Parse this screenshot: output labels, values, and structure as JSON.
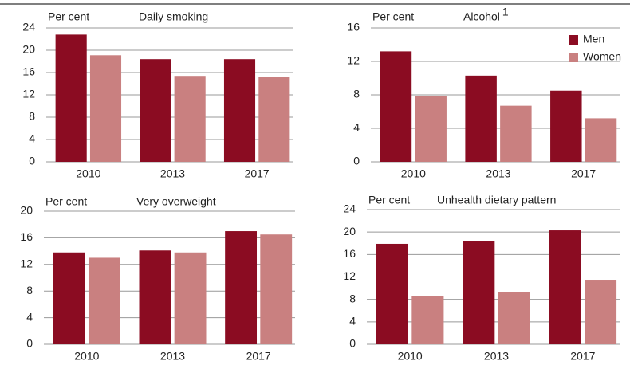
{
  "chart_data": [
    {
      "type": "bar",
      "title": "Daily smoking",
      "y_label": "Per cent",
      "categories": [
        "2010",
        "2013",
        "2017"
      ],
      "series": [
        {
          "name": "Men",
          "color": "#8b0c22",
          "values": [
            22.8,
            18.4,
            18.4
          ]
        },
        {
          "name": "Women",
          "color": "#c98080",
          "values": [
            19.1,
            15.4,
            15.2
          ]
        }
      ],
      "ylim": [
        0,
        24
      ],
      "yticks": [
        0,
        4,
        8,
        12,
        16,
        20,
        24
      ],
      "grid": true
    },
    {
      "type": "bar",
      "title": "Alcohol",
      "title_note": "1",
      "y_label": "Per cent",
      "categories": [
        "2010",
        "2013",
        "2017"
      ],
      "series": [
        {
          "name": "Men",
          "color": "#8b0c22",
          "values": [
            13.2,
            10.3,
            8.5
          ]
        },
        {
          "name": "Women",
          "color": "#c98080",
          "values": [
            7.9,
            6.7,
            5.2
          ]
        }
      ],
      "ylim": [
        0,
        16
      ],
      "yticks": [
        0,
        4,
        8,
        12,
        16
      ],
      "grid": true,
      "legend": "upper right"
    },
    {
      "type": "bar",
      "title": "Very overweight",
      "y_label": "Per cent",
      "categories": [
        "2010",
        "2013",
        "2017"
      ],
      "series": [
        {
          "name": "Men",
          "color": "#8b0c22",
          "values": [
            13.8,
            14.1,
            17.0
          ]
        },
        {
          "name": "Women",
          "color": "#c98080",
          "values": [
            13.0,
            13.8,
            16.5
          ]
        }
      ],
      "ylim": [
        0,
        20
      ],
      "yticks": [
        0,
        4,
        8,
        12,
        16,
        20
      ],
      "grid": true
    },
    {
      "type": "bar",
      "title": "Unhealth dietary pattern",
      "y_label": "Per cent",
      "categories": [
        "2010",
        "2013",
        "2017"
      ],
      "series": [
        {
          "name": "Men",
          "color": "#8b0c22",
          "values": [
            17.9,
            18.4,
            20.3
          ]
        },
        {
          "name": "Women",
          "color": "#c98080",
          "values": [
            8.6,
            9.3,
            11.5
          ]
        }
      ],
      "ylim": [
        0,
        24
      ],
      "yticks": [
        0,
        4,
        8,
        12,
        16,
        20,
        24
      ],
      "grid": true
    }
  ]
}
